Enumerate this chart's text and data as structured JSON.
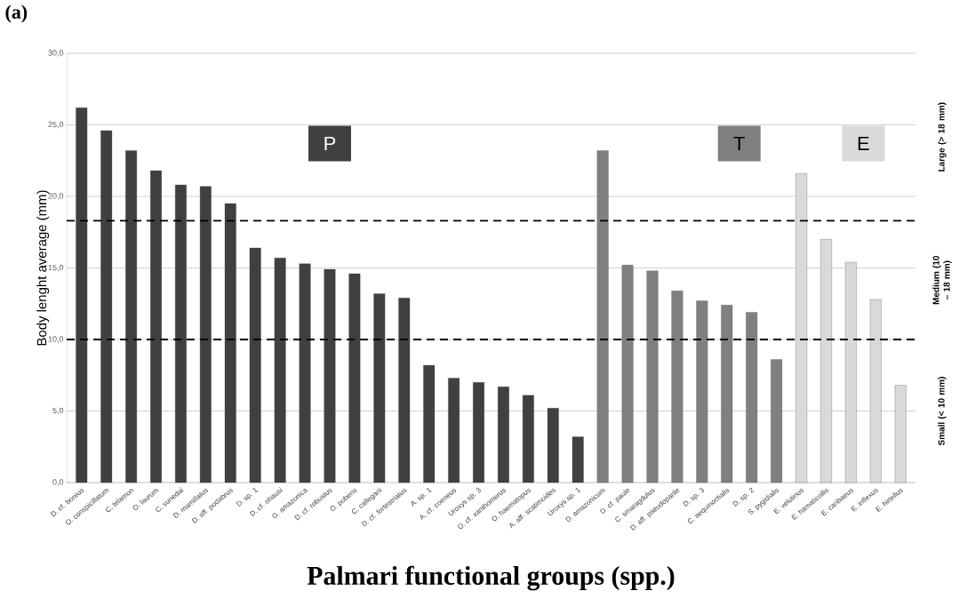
{
  "chart_data": {
    "type": "bar",
    "title": "(a)",
    "xlabel": "Palmari functional groups (spp.)",
    "ylabel": "Body lenght average (mm)",
    "categories": [
      "D. cf. boreus",
      "O. conspicillatum",
      "C. telamon",
      "O. laurum",
      "C. sunedai",
      "D. mamillatus",
      "D. aff. podabrus",
      "D. sp. 1",
      "D. cf. ohausi",
      "G. amazonica",
      "D. cf. robustus",
      "O. pubens",
      "C. callegarii",
      "D. cf. fortestriatus",
      "A. sp. 1",
      "A. cf. coeneus",
      "Uroxys sp. 3",
      "O. cf. xanthomerus",
      "O. haematopus",
      "A. aff. scatimoides",
      "Uroxys sp. 1",
      "D. amazonicum",
      "D. cf. paule",
      "C. smaragdulus",
      "D. aff. pseudoparile",
      "D. sp. 3",
      "C. aequinoctialis",
      "D. sp. 2",
      "S. pygidialis",
      "E. velutinus",
      "E. hamaticollis",
      "E. caribaeus",
      "E. inflexus",
      "E. hirtellus"
    ],
    "series": [
      {
        "name": "P",
        "color": "#404040",
        "values": [
          26.2,
          24.6,
          23.2,
          21.8,
          20.8,
          20.7,
          19.5,
          16.4,
          15.7,
          15.3,
          14.9,
          14.6,
          13.2,
          12.9,
          8.2,
          7.3,
          7.0,
          6.7,
          6.1,
          5.2,
          3.2,
          null,
          null,
          null,
          null,
          null,
          null,
          null,
          null,
          null,
          null,
          null,
          null,
          null
        ]
      },
      {
        "name": "T",
        "color": "#808080",
        "values": [
          null,
          null,
          null,
          null,
          null,
          null,
          null,
          null,
          null,
          null,
          null,
          null,
          null,
          null,
          null,
          null,
          null,
          null,
          null,
          null,
          null,
          23.2,
          15.2,
          14.8,
          13.4,
          12.7,
          12.4,
          11.9,
          8.6,
          null,
          null,
          null,
          null,
          null
        ]
      },
      {
        "name": "E",
        "color": "#d9d9d9",
        "values": [
          null,
          null,
          null,
          null,
          null,
          null,
          null,
          null,
          null,
          null,
          null,
          null,
          null,
          null,
          null,
          null,
          null,
          null,
          null,
          null,
          null,
          null,
          null,
          null,
          null,
          null,
          null,
          null,
          null,
          21.6,
          17.0,
          15.4,
          12.8,
          6.8
        ]
      }
    ],
    "ylim": [
      0,
      30
    ],
    "yticks": [
      {
        "value": 0,
        "label": "0,0"
      },
      {
        "value": 5,
        "label": "5,0"
      },
      {
        "value": 10,
        "label": "10,0"
      },
      {
        "value": 15,
        "label": "15,0"
      },
      {
        "value": 20,
        "label": "20,0"
      },
      {
        "value": 25,
        "label": "25,0"
      },
      {
        "value": 30,
        "label": "30,0"
      }
    ],
    "grid": "y",
    "ref_lines": [
      {
        "axis": "y",
        "value": 18.3,
        "line_style": "dashed",
        "color": "#000000"
      },
      {
        "axis": "y",
        "value": 10.0,
        "line_style": "dashed",
        "color": "#000000"
      }
    ],
    "annotations": [
      "Large (> 18  mm)",
      "Medium (10 – 18 mm)",
      "Small (< 10 mm)"
    ]
  }
}
